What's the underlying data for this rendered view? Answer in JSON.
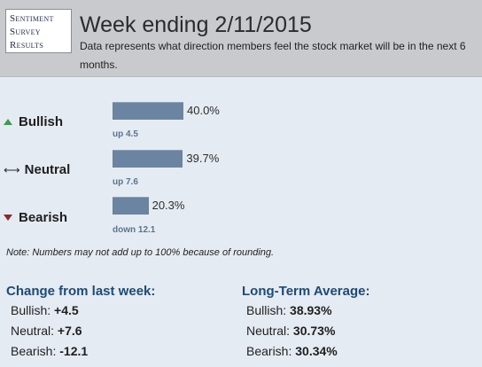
{
  "logo": {
    "line1": "Sentiment",
    "line2": "Survey",
    "line3": "Results"
  },
  "header": {
    "title": "Week ending 2/11/2015",
    "subtitle": "Data represents what direction members feel the stock market will be in the next 6 months."
  },
  "rows": [
    {
      "label": "Bullish",
      "icon": "up-triangle-icon",
      "value": 40.0,
      "value_text": "40.0%",
      "change": "up 4.5",
      "color": "#6b84a1"
    },
    {
      "label": "Neutral",
      "icon": "left-right-arrow-icon",
      "value": 39.7,
      "value_text": "39.7%",
      "change": "up 7.6",
      "color": "#6b84a1"
    },
    {
      "label": "Bearish",
      "icon": "down-triangle-icon",
      "value": 20.3,
      "value_text": "20.3%",
      "change": "down 12.1",
      "color": "#6b84a1"
    }
  ],
  "note": "Note: Numbers may not add up to 100% because of rounding.",
  "change_section": {
    "title": "Change from last week:",
    "items": [
      {
        "label": "Bullish:",
        "value": "+4.5"
      },
      {
        "label": "Neutral:",
        "value": "+7.6"
      },
      {
        "label": "Bearish:",
        "value": "-12.1"
      }
    ]
  },
  "longterm_section": {
    "title": "Long-Term Average:",
    "items": [
      {
        "label": "Bullish:",
        "value": "38.93%"
      },
      {
        "label": "Neutral:",
        "value": "30.73%"
      },
      {
        "label": "Bearish:",
        "value": "30.34%"
      }
    ]
  }
}
